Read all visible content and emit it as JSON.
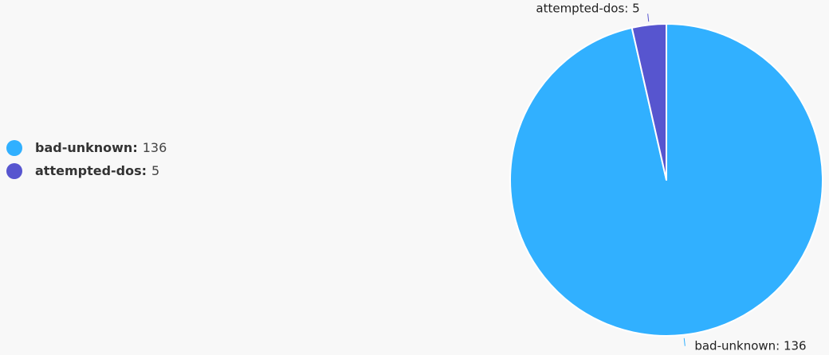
{
  "chart_data": {
    "type": "pie",
    "title": "",
    "series": [
      {
        "name": "bad-unknown",
        "value": 136,
        "color": "#31b0ff"
      },
      {
        "name": "attempted-dos",
        "value": 5,
        "color": "#5755cf"
      }
    ],
    "legend": {
      "position": "left"
    },
    "slice_labels": [
      "bad-unknown: 136",
      "attempted-dos: 5"
    ]
  }
}
